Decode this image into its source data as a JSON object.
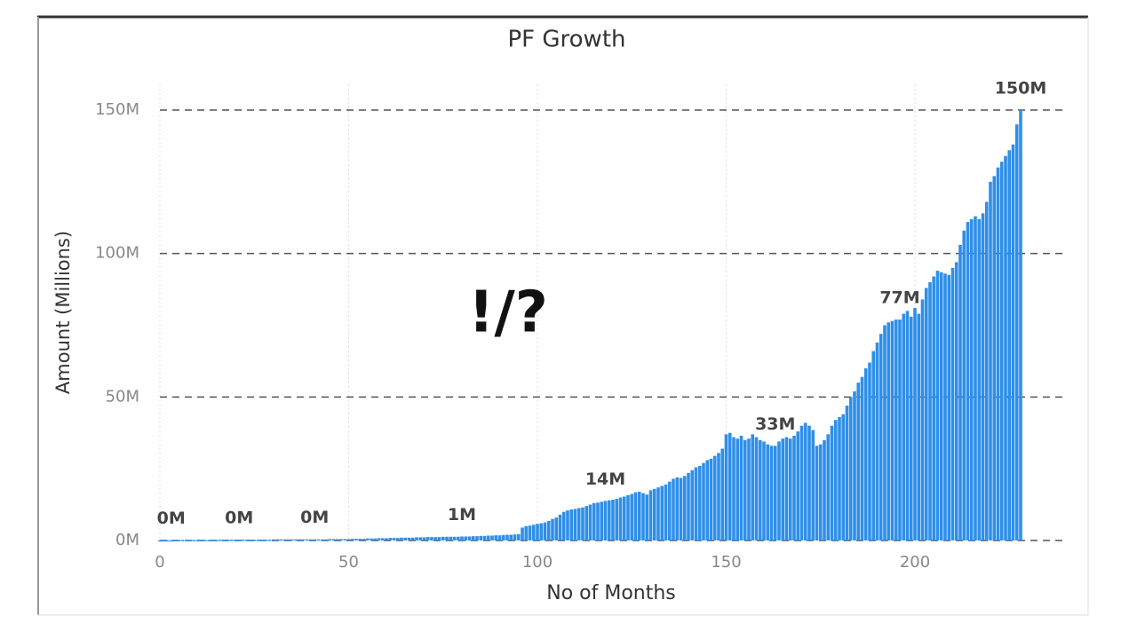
{
  "chart_data": {
    "type": "bar",
    "title": "PF Growth",
    "x_label": "No of Months",
    "y_label": "Amount (Millions)",
    "annotation": "!/?",
    "color": "#2f8fe8",
    "grid": true,
    "xlim": [
      0,
      240
    ],
    "xticks": [
      0,
      50,
      100,
      150,
      200
    ],
    "ylim": [
      0,
      150
    ],
    "yticks": [
      {
        "value": 0,
        "label": "0M"
      },
      {
        "value": 50,
        "label": "50M"
      },
      {
        "value": 100,
        "label": "100M"
      },
      {
        "value": 150,
        "label": "150M"
      }
    ],
    "x": [
      0,
      1,
      2,
      3,
      4,
      5,
      6,
      7,
      8,
      9,
      10,
      11,
      12,
      13,
      14,
      15,
      16,
      17,
      18,
      19,
      20,
      21,
      22,
      23,
      24,
      25,
      26,
      27,
      28,
      29,
      30,
      31,
      32,
      33,
      34,
      35,
      36,
      37,
      38,
      39,
      40,
      41,
      42,
      43,
      44,
      45,
      46,
      47,
      48,
      49,
      50,
      51,
      52,
      53,
      54,
      55,
      56,
      57,
      58,
      59,
      60,
      61,
      62,
      63,
      64,
      65,
      66,
      67,
      68,
      69,
      70,
      71,
      72,
      73,
      74,
      75,
      76,
      77,
      78,
      79,
      80,
      81,
      82,
      83,
      84,
      85,
      86,
      87,
      88,
      89,
      90,
      91,
      92,
      93,
      94,
      95,
      96,
      97,
      98,
      99,
      100,
      101,
      102,
      103,
      104,
      105,
      106,
      107,
      108,
      109,
      110,
      111,
      112,
      113,
      114,
      115,
      116,
      117,
      118,
      119,
      120,
      121,
      122,
      123,
      124,
      125,
      126,
      127,
      128,
      129,
      130,
      131,
      132,
      133,
      134,
      135,
      136,
      137,
      138,
      139,
      140,
      141,
      142,
      143,
      144,
      145,
      146,
      147,
      148,
      149,
      150,
      151,
      152,
      153,
      154,
      155,
      156,
      157,
      158,
      159,
      160,
      161,
      162,
      163,
      164,
      165,
      166,
      167,
      168,
      169,
      170,
      171,
      172,
      173,
      174,
      175,
      176,
      177,
      178,
      179,
      180,
      181,
      182,
      183,
      184,
      185,
      186,
      187,
      188,
      189,
      190,
      191,
      192,
      193,
      194,
      195,
      196,
      197,
      198,
      199,
      200,
      201,
      202,
      203,
      204,
      205,
      206,
      207,
      208,
      209,
      210,
      211,
      212,
      213,
      214,
      215,
      216,
      217,
      218,
      219,
      220,
      221,
      222,
      223,
      224,
      225,
      226,
      227,
      228
    ],
    "values": [
      0.1,
      0.1,
      0.1,
      0.1,
      0.2,
      0.2,
      0.2,
      0.2,
      0.2,
      0.2,
      0.2,
      0.2,
      0.2,
      0.2,
      0.2,
      0.2,
      0.3,
      0.3,
      0.3,
      0.3,
      0.3,
      0.3,
      0.3,
      0.3,
      0.3,
      0.3,
      0.3,
      0.3,
      0.3,
      0.3,
      0.4,
      0.4,
      0.4,
      0.4,
      0.4,
      0.4,
      0.4,
      0.4,
      0.4,
      0.4,
      0.4,
      0.4,
      0.4,
      0.4,
      0.4,
      0.5,
      0.5,
      0.5,
      0.5,
      0.5,
      0.5,
      0.6,
      0.6,
      0.6,
      0.6,
      0.7,
      0.7,
      0.7,
      0.8,
      0.8,
      0.8,
      0.9,
      0.9,
      0.9,
      1.0,
      1.0,
      1.0,
      1.0,
      1.1,
      1.1,
      1.1,
      1.2,
      1.2,
      1.2,
      1.2,
      1.3,
      1.3,
      1.3,
      1.3,
      1.3,
      1.4,
      1.4,
      1.4,
      1.5,
      1.5,
      1.6,
      1.6,
      1.7,
      1.7,
      1.8,
      1.8,
      1.9,
      2.0,
      2.0,
      2.1,
      2.2,
      4.5,
      5.0,
      5.2,
      5.5,
      5.8,
      6.0,
      6.3,
      6.8,
      7.5,
      8.0,
      9.0,
      10.0,
      10.5,
      10.8,
      11.0,
      11.3,
      11.5,
      12.0,
      12.5,
      13.0,
      13.2,
      13.5,
      13.8,
      14.0,
      14.2,
      14.5,
      15.0,
      15.3,
      15.8,
      16.2,
      16.8,
      17.0,
      16.5,
      16.0,
      17.5,
      18.0,
      18.5,
      19.0,
      19.5,
      20.5,
      21.5,
      22.0,
      21.8,
      22.5,
      23.5,
      24.5,
      25.5,
      26.0,
      27.0,
      28.0,
      28.5,
      29.5,
      30.5,
      32.0,
      37.0,
      37.5,
      36.0,
      35.5,
      36.5,
      35.0,
      35.5,
      37.0,
      36.0,
      35.0,
      34.5,
      33.5,
      33.0,
      33.0,
      34.5,
      35.5,
      36.0,
      35.5,
      36.5,
      38.0,
      40.0,
      41.0,
      40.0,
      38.5,
      33.0,
      33.5,
      35.0,
      37.0,
      40.0,
      42.0,
      43.0,
      44.0,
      47.0,
      50.0,
      52.0,
      55.0,
      57.0,
      60.0,
      62.0,
      66.0,
      69.0,
      72.0,
      75.0,
      76.0,
      76.5,
      77.0,
      77.0,
      79.0,
      80.0,
      78.0,
      81.0,
      79.0,
      84.0,
      88.0,
      90.0,
      92.0,
      94.0,
      93.5,
      93.0,
      92.5,
      95.0,
      97.0,
      103.0,
      108.0,
      111.0,
      112.0,
      113.0,
      112.0,
      114.0,
      118.0,
      125.0,
      127.0,
      130.0,
      132.0,
      134.0,
      136.0,
      138.0,
      145.0,
      150.0
    ],
    "value_labels": [
      null,
      null,
      null,
      "0M",
      null,
      null,
      null,
      null,
      null,
      null,
      null,
      null,
      null,
      null,
      null,
      null,
      null,
      null,
      null,
      null,
      null,
      "0M",
      null,
      null,
      null,
      null,
      null,
      null,
      null,
      null,
      null,
      null,
      null,
      null,
      null,
      null,
      null,
      null,
      null,
      null,
      null,
      "0M",
      null,
      null,
      null,
      null,
      null,
      null,
      null,
      null,
      null,
      null,
      null,
      null,
      null,
      null,
      null,
      null,
      null,
      null,
      null,
      null,
      null,
      null,
      null,
      null,
      null,
      null,
      null,
      null,
      null,
      null,
      null,
      null,
      null,
      null,
      null,
      null,
      null,
      null,
      "1M",
      null,
      null,
      null,
      null,
      null,
      null,
      null,
      null,
      null,
      null,
      null,
      null,
      null,
      null,
      null,
      null,
      null,
      null,
      null,
      null,
      null,
      null,
      null,
      null,
      null,
      null,
      null,
      null,
      null,
      null,
      null,
      null,
      null,
      null,
      null,
      null,
      null,
      "14M",
      null,
      null,
      null,
      null,
      null,
      null,
      null,
      null,
      null,
      null,
      null,
      null,
      null,
      null,
      null,
      null,
      null,
      null,
      null,
      null,
      null,
      null,
      null,
      null,
      null,
      null,
      null,
      null,
      null,
      null,
      null,
      null,
      null,
      null,
      null,
      null,
      null,
      null,
      null,
      null,
      null,
      null,
      null,
      null,
      "33M",
      null,
      null,
      null,
      null,
      null,
      null,
      null,
      null,
      null,
      null,
      null,
      null,
      null,
      null,
      null,
      null,
      null,
      null,
      null,
      null,
      null,
      null,
      null,
      null,
      null,
      null,
      null,
      null,
      null,
      null,
      null,
      null,
      "77M",
      null,
      null,
      null,
      null,
      null,
      null,
      null,
      null,
      null,
      null,
      null,
      null,
      null,
      null,
      null,
      null,
      null,
      null,
      null,
      null,
      null,
      null,
      null,
      null,
      null,
      null,
      null,
      null,
      null,
      null,
      null,
      "150M"
    ]
  }
}
